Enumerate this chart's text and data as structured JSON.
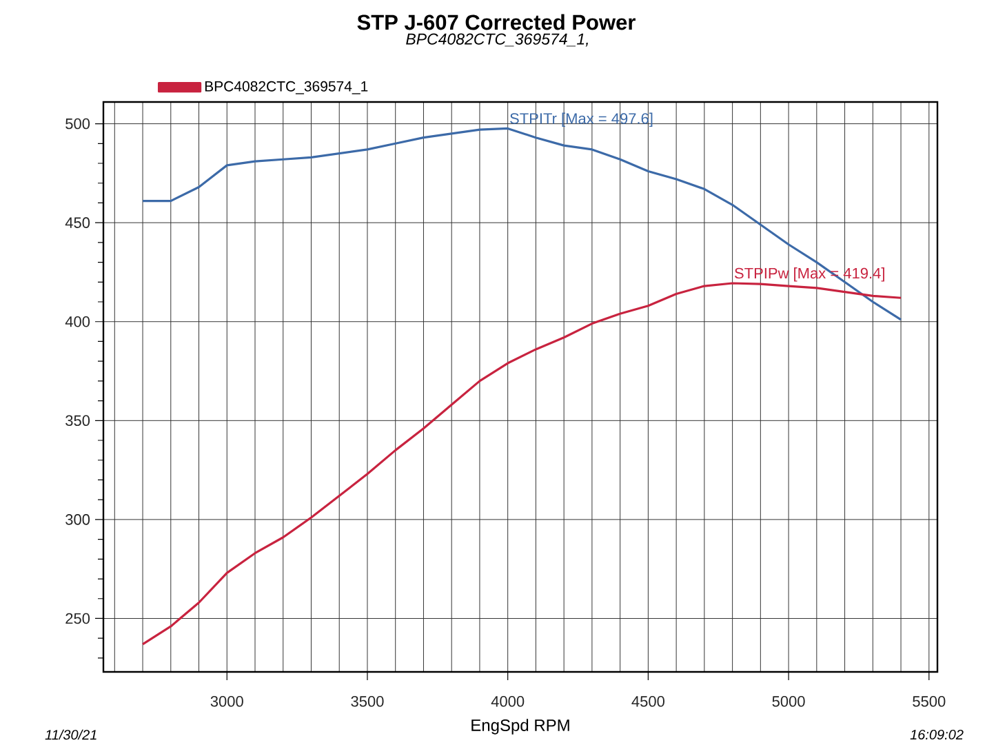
{
  "chart_data": {
    "type": "line",
    "title": "STP J-607 Corrected Power",
    "subtitle": "BPC4082CTC_369574_1,",
    "xlabel": "EngSpd RPM",
    "x": [
      2700,
      2800,
      2900,
      3000,
      3100,
      3200,
      3300,
      3400,
      3500,
      3600,
      3700,
      3800,
      3900,
      4000,
      4100,
      4200,
      4300,
      4400,
      4500,
      4600,
      4700,
      4800,
      4900,
      5000,
      5100,
      5200,
      5300,
      5400
    ],
    "series": [
      {
        "color": "#3c6aa8",
        "values": [
          461,
          461,
          468,
          479,
          481,
          482,
          483,
          485,
          487,
          490,
          493,
          495,
          497,
          497.6,
          493,
          489,
          487,
          482,
          476,
          472,
          467,
          459,
          449,
          439,
          430,
          420,
          410,
          401
        ]
      },
      {
        "name": "BPC4082CTC_369574_1",
        "color": "#c8233f",
        "values": [
          237,
          246,
          258,
          273,
          283,
          291,
          301,
          312,
          323,
          335,
          346,
          358,
          370,
          379,
          386,
          392,
          399,
          404,
          408,
          414,
          418,
          419.4,
          419,
          418,
          417,
          415,
          413,
          412
        ]
      }
    ],
    "xlim": [
      2560,
      5530
    ],
    "ylim": [
      223,
      511
    ],
    "xticks": [
      {
        "value": 2600,
        "label": null
      },
      {
        "value": 2700,
        "label": null
      },
      {
        "value": 2800,
        "label": null
      },
      {
        "value": 2900,
        "label": null
      },
      3000,
      {
        "value": 3100,
        "label": null
      },
      {
        "value": 3200,
        "label": null
      },
      {
        "value": 3300,
        "label": null
      },
      {
        "value": 3400,
        "label": null
      },
      3500,
      {
        "value": 3600,
        "label": null
      },
      {
        "value": 3700,
        "label": null
      },
      {
        "value": 3800,
        "label": null
      },
      {
        "value": 3900,
        "label": null
      },
      4000,
      {
        "value": 4100,
        "label": null
      },
      {
        "value": 4200,
        "label": null
      },
      {
        "value": 4300,
        "label": null
      },
      {
        "value": 4400,
        "label": null
      },
      4500,
      {
        "value": 4600,
        "label": null
      },
      {
        "value": 4700,
        "label": null
      },
      {
        "value": 4800,
        "label": null
      },
      {
        "value": 4900,
        "label": null
      },
      5000,
      {
        "value": 5100,
        "label": null
      },
      {
        "value": 5200,
        "label": null
      },
      {
        "value": 5300,
        "label": null
      },
      {
        "value": 5400,
        "label": null
      },
      5500
    ],
    "yticks": [
      {
        "value": 230,
        "label": null
      },
      {
        "value": 240,
        "label": null
      },
      250,
      {
        "value": 260,
        "label": null
      },
      {
        "value": 270,
        "label": null
      },
      {
        "value": 280,
        "label": null
      },
      {
        "value": 290,
        "label": null
      },
      300,
      {
        "value": 310,
        "label": null
      },
      {
        "value": 320,
        "label": null
      },
      {
        "value": 330,
        "label": null
      },
      {
        "value": 340,
        "label": null
      },
      350,
      {
        "value": 360,
        "label": null
      },
      {
        "value": 370,
        "label": null
      },
      {
        "value": 380,
        "label": null
      },
      {
        "value": 390,
        "label": null
      },
      400,
      {
        "value": 410,
        "label": null
      },
      {
        "value": 420,
        "label": null
      },
      {
        "value": 430,
        "label": null
      },
      {
        "value": 440,
        "label": null
      },
      450,
      {
        "value": 460,
        "label": null
      },
      {
        "value": 470,
        "label": null
      },
      {
        "value": 480,
        "label": null
      },
      {
        "value": 490,
        "label": null
      },
      500
    ],
    "grid": true,
    "legend": "top left",
    "annotations": [
      {
        "text": "STPITr [Max = 497.6]",
        "x": 4000,
        "y": 497.6
      },
      {
        "text": "STPIPw [Max = 419.4]",
        "x": 4800,
        "y": 419.4
      },
      "11/30/21",
      "16:09:02"
    ]
  }
}
